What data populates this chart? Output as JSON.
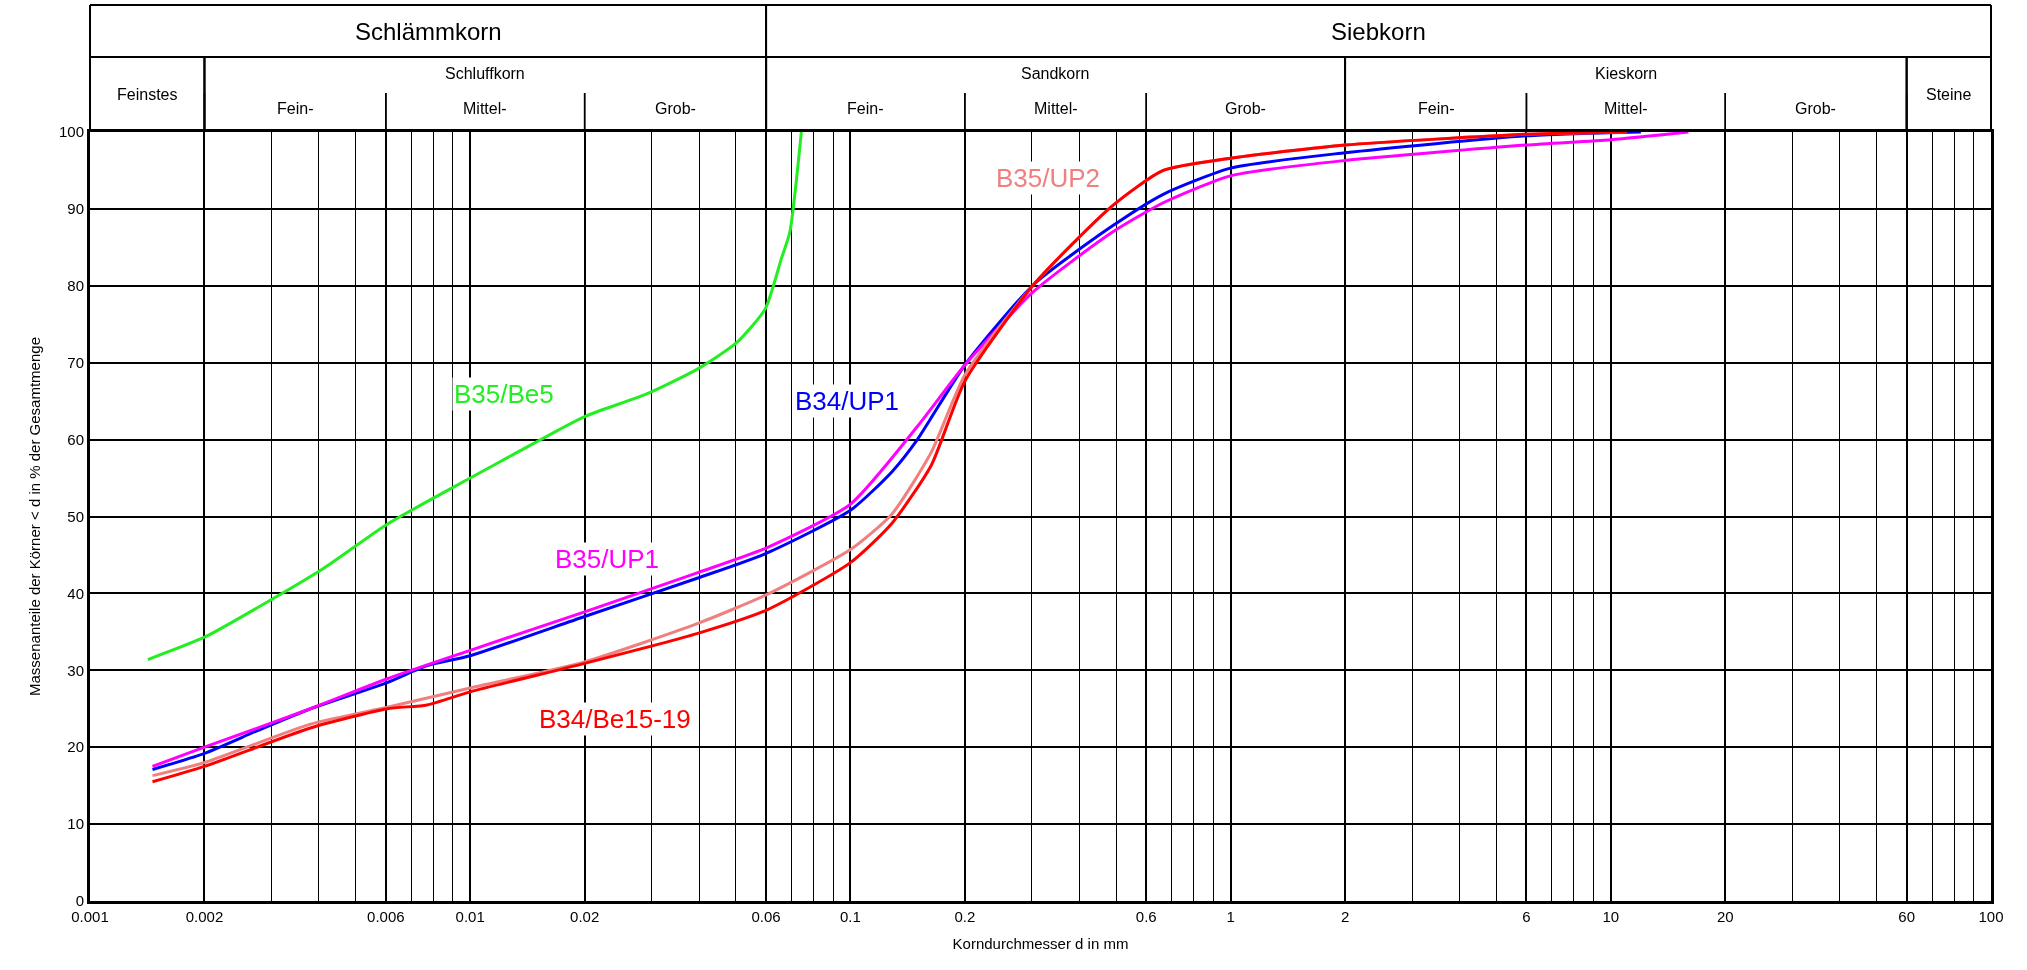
{
  "chart_data": {
    "type": "line",
    "xlabel": "Korndurchmesser d in mm",
    "ylabel": "Massenanteile der Körner < d in % der Gesamtmenge",
    "log": "x",
    "grid": true,
    "legend": false,
    "marker": "none",
    "line_style": "solid",
    "xlim": [
      0.001,
      100
    ],
    "xticks": [
      0.001,
      0.002,
      0.006,
      0.01,
      0.02,
      0.06,
      0.1,
      0.2,
      0.6,
      1,
      2,
      6,
      10,
      20,
      60,
      100
    ],
    "ylim": [
      0,
      100
    ],
    "yticks": [
      0,
      10,
      20,
      30,
      40,
      50,
      60,
      70,
      80,
      90,
      100
    ],
    "annotations": [
      "Schlämmkorn",
      "Siebkorn",
      "Feinstes",
      "Schluffkorn",
      "Fein-",
      "Mittel-",
      "Grob-",
      "Sandkorn",
      "Fein-",
      "Mittel-",
      "Grob-",
      "Kieskorn",
      "Fein-",
      "Mittel-",
      "Grob-",
      "Steine"
    ],
    "series": [
      {
        "name": "B35/Be5",
        "color": "#22ee22",
        "x": [
          0.00142,
          0.002,
          0.00277,
          0.0041,
          0.00605,
          0.01,
          0.01325,
          0.02,
          0.029,
          0.0397,
          0.0502,
          0.0597,
          0.0658,
          0.0693,
          0.0743
        ],
        "values": [
          31.4,
          34.3,
          38.2,
          43.2,
          49,
          55,
          58.3,
          63,
          65.9,
          69.2,
          72.6,
          77,
          83.5,
          87,
          100
        ]
      },
      {
        "name": "B34/UP1",
        "color": "#0000ff",
        "x": [
          0.00146,
          0.002,
          0.00277,
          0.0038,
          0.00605,
          0.0077,
          0.01,
          0.02,
          0.0397,
          0.06,
          0.1,
          0.1285,
          0.15,
          0.2,
          0.304,
          0.486,
          0.665,
          1,
          2,
          6,
          12
        ],
        "values": [
          17.1,
          19.2,
          22.2,
          25,
          28.4,
          30.6,
          31.9,
          37,
          42,
          45.2,
          50.8,
          55.8,
          60,
          69.7,
          80.2,
          87.7,
          91.9,
          95.3,
          97.3,
          99.5,
          100
        ]
      },
      {
        "name": "B35/UP1",
        "color": "#ff00ff",
        "x": [
          0.00146,
          0.002,
          0.0038,
          0.00605,
          0.01,
          0.02,
          0.0397,
          0.06,
          0.1,
          0.15,
          0.2,
          0.304,
          0.486,
          0.665,
          1,
          2,
          6,
          10,
          16
        ],
        "values": [
          17.5,
          20,
          25,
          28.9,
          32.6,
          37.6,
          42.7,
          45.9,
          51.6,
          61.7,
          69.7,
          79.3,
          86.9,
          90.8,
          94.3,
          96.3,
          98.3,
          99,
          100
        ]
      },
      {
        "name": "B35/UP2",
        "color": "#f08080",
        "x": [
          0.00146,
          0.002,
          0.0038,
          0.00605,
          0.01,
          0.02,
          0.0397,
          0.06,
          0.1,
          0.1285,
          0.163,
          0.2,
          0.304,
          0.486,
          0.665,
          1,
          2,
          6,
          11
        ],
        "values": [
          16.3,
          18,
          23,
          25.2,
          27.7,
          31.1,
          36.1,
          39.8,
          45.7,
          50.3,
          58.3,
          68.4,
          80.2,
          90.3,
          95,
          96.6,
          98.3,
          99.7,
          100
        ]
      },
      {
        "name": "B34/Be15-19",
        "color": "#ff0000",
        "x": [
          0.00146,
          0.002,
          0.0038,
          0.00605,
          0.0077,
          0.01,
          0.02,
          0.0397,
          0.06,
          0.1,
          0.1285,
          0.163,
          0.2,
          0.304,
          0.486,
          0.665,
          1,
          2,
          6,
          11
        ],
        "values": [
          15.5,
          17.5,
          22.5,
          25,
          25.5,
          27.2,
          30.9,
          34.8,
          37.8,
          44,
          49.1,
          56.6,
          67.6,
          80.2,
          90.3,
          95,
          96.6,
          98.3,
          99.7,
          100
        ]
      }
    ]
  }
}
